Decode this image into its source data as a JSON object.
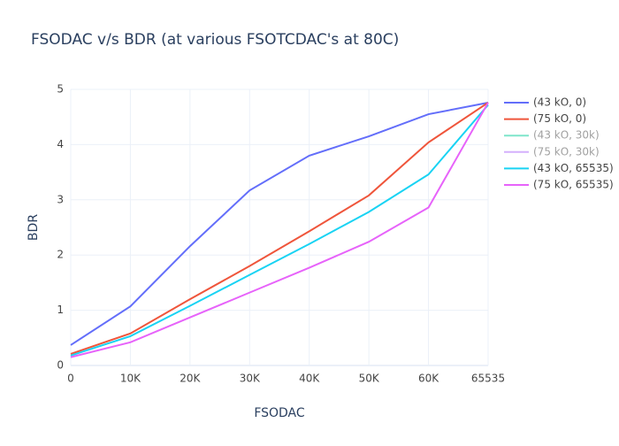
{
  "chart_data": {
    "type": "line",
    "title": "FSODAC v/s BDR (at various FSOTCDAC's at 80C)",
    "x_label": "FSODAC",
    "y_label": "BDR",
    "categories": [
      "0",
      "10K",
      "20K",
      "30K",
      "40K",
      "50K",
      "60K",
      "65535"
    ],
    "ylim": [
      0,
      5
    ],
    "yticks": [
      0,
      1,
      2,
      3,
      4,
      5
    ],
    "grid": true,
    "series": [
      {
        "name": "(43 kO, 0)",
        "color": "#636efa",
        "values": [
          0.37,
          1.07,
          2.16,
          3.17,
          3.8,
          4.15,
          4.55,
          4.76
        ]
      },
      {
        "name": "(75 kO, 0)",
        "color": "#EF553B",
        "values": [
          0.21,
          0.58,
          1.2,
          1.8,
          2.43,
          3.08,
          4.04,
          4.76
        ]
      },
      {
        "name": "(43 kO, 30k)",
        "color": "#00cc96",
        "visible": "legendonly"
      },
      {
        "name": "(75 kO, 30k)",
        "color": "#ab63fa",
        "visible": "legendonly"
      },
      {
        "name": "(43 kO, 65535)",
        "color": "#19d3f3",
        "values": [
          0.18,
          0.53,
          1.08,
          1.64,
          2.2,
          2.78,
          3.46,
          4.72
        ]
      },
      {
        "name": "(75 kO, 65535)",
        "color": "#e763fa",
        "values": [
          0.15,
          0.42,
          0.87,
          1.32,
          1.77,
          2.24,
          2.86,
          4.76
        ]
      }
    ]
  }
}
